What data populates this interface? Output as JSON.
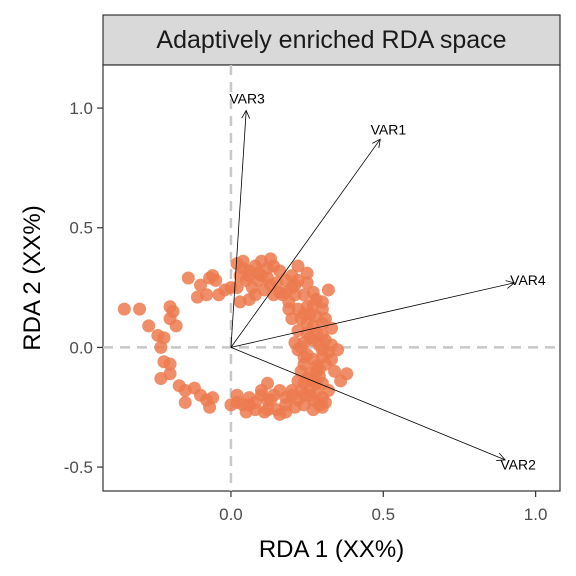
{
  "chart_data": {
    "type": "scatter",
    "title": "Adaptively enriched RDA space",
    "xlabel": "RDA 1 (XX%)",
    "ylabel": "RDA 2 (XX%)",
    "xlim": [
      -0.42,
      1.08
    ],
    "ylim": [
      -0.6,
      1.18
    ],
    "x_ticks": [
      {
        "value": 0.0,
        "label": "0.0"
      },
      {
        "value": 0.5,
        "label": "0.5"
      },
      {
        "value": 1.0,
        "label": "1.0"
      }
    ],
    "y_ticks": [
      {
        "value": -0.5,
        "label": "-0.5"
      },
      {
        "value": 0.0,
        "label": "0.0"
      },
      {
        "value": 0.5,
        "label": "0.5"
      },
      {
        "value": 1.0,
        "label": "1.0"
      }
    ],
    "grid": false,
    "reference_lines": {
      "x": 0,
      "y": 0
    },
    "point_color": "#EC7A4F",
    "vectors": [
      {
        "label": "VAR1",
        "x": 0.49,
        "y": 0.87
      },
      {
        "label": "VAR2",
        "x": 0.9,
        "y": -0.47
      },
      {
        "label": "VAR3",
        "x": 0.05,
        "y": 0.99
      },
      {
        "label": "VAR4",
        "x": 0.93,
        "y": 0.27
      }
    ],
    "points": [
      [
        -0.35,
        0.16
      ],
      [
        -0.3,
        0.16
      ],
      [
        -0.27,
        0.09
      ],
      [
        -0.24,
        0.05
      ],
      [
        -0.23,
        0.0
      ],
      [
        -0.22,
        0.04
      ],
      [
        -0.2,
        0.12
      ],
      [
        -0.2,
        0.17
      ],
      [
        -0.19,
        0.15
      ],
      [
        -0.18,
        0.09
      ],
      [
        -0.22,
        -0.06
      ],
      [
        -0.23,
        -0.13
      ],
      [
        -0.2,
        -0.11
      ],
      [
        -0.17,
        -0.16
      ],
      [
        -0.2,
        -0.07
      ],
      [
        -0.15,
        -0.18
      ],
      [
        -0.12,
        -0.17
      ],
      [
        -0.15,
        -0.23
      ],
      [
        -0.1,
        -0.2
      ],
      [
        -0.07,
        -0.25
      ],
      [
        -0.08,
        -0.22
      ],
      [
        -0.06,
        -0.21
      ],
      [
        -0.14,
        0.29
      ],
      [
        -0.11,
        0.21
      ],
      [
        -0.1,
        0.26
      ],
      [
        -0.08,
        0.22
      ],
      [
        -0.07,
        0.29
      ],
      [
        -0.06,
        0.3
      ],
      [
        -0.05,
        0.28
      ],
      [
        -0.04,
        0.22
      ],
      [
        -0.02,
        0.24
      ],
      [
        0.0,
        0.25
      ],
      [
        0.02,
        0.25
      ],
      [
        0.03,
        0.3
      ],
      [
        0.05,
        0.28
      ],
      [
        0.02,
        0.35
      ],
      [
        0.04,
        0.33
      ],
      [
        0.06,
        0.32
      ],
      [
        0.08,
        0.34
      ],
      [
        0.1,
        0.36
      ],
      [
        0.1,
        0.3
      ],
      [
        0.12,
        0.33
      ],
      [
        0.14,
        0.34
      ],
      [
        0.16,
        0.32
      ],
      [
        0.18,
        0.28
      ],
      [
        0.16,
        0.23
      ],
      [
        0.13,
        0.26
      ],
      [
        0.11,
        0.24
      ],
      [
        0.08,
        0.22
      ],
      [
        0.06,
        0.2
      ],
      [
        0.03,
        0.19
      ],
      [
        0.07,
        0.25
      ],
      [
        0.12,
        0.29
      ],
      [
        0.15,
        0.27
      ],
      [
        0.18,
        0.23
      ],
      [
        0.2,
        0.25
      ],
      [
        0.2,
        0.3
      ],
      [
        0.22,
        0.28
      ],
      [
        0.21,
        0.22
      ],
      [
        0.19,
        0.19
      ],
      [
        0.24,
        0.22
      ],
      [
        0.25,
        0.17
      ],
      [
        0.22,
        0.16
      ],
      [
        0.23,
        0.12
      ],
      [
        0.26,
        0.14
      ],
      [
        0.28,
        0.13
      ],
      [
        0.27,
        0.09
      ],
      [
        0.3,
        0.1
      ],
      [
        0.31,
        0.12
      ],
      [
        0.33,
        0.08
      ],
      [
        0.32,
        0.24
      ],
      [
        0.28,
        0.2
      ],
      [
        0.25,
        0.06
      ],
      [
        0.22,
        0.07
      ],
      [
        0.27,
        0.03
      ],
      [
        0.3,
        0.05
      ],
      [
        0.24,
        0.02
      ],
      [
        0.22,
        -0.01
      ],
      [
        0.25,
        -0.03
      ],
      [
        0.27,
        -0.05
      ],
      [
        0.3,
        -0.04
      ],
      [
        0.28,
        -0.08
      ],
      [
        0.24,
        -0.07
      ],
      [
        0.23,
        -0.1
      ],
      [
        0.26,
        -0.11
      ],
      [
        0.29,
        -0.12
      ],
      [
        0.3,
        -0.15
      ],
      [
        0.27,
        -0.14
      ],
      [
        0.24,
        -0.15
      ],
      [
        0.26,
        -0.17
      ],
      [
        0.28,
        -0.19
      ],
      [
        0.3,
        -0.21
      ],
      [
        0.32,
        -0.18
      ],
      [
        0.29,
        -0.24
      ],
      [
        0.31,
        -0.23
      ],
      [
        0.27,
        -0.22
      ],
      [
        0.24,
        -0.2
      ],
      [
        0.2,
        -0.18
      ],
      [
        0.22,
        -0.22
      ],
      [
        0.18,
        -0.21
      ],
      [
        0.16,
        -0.18
      ],
      [
        0.14,
        -0.2
      ],
      [
        0.12,
        -0.22
      ],
      [
        0.1,
        -0.2
      ],
      [
        0.08,
        -0.23
      ],
      [
        0.06,
        -0.21
      ],
      [
        0.04,
        -0.24
      ],
      [
        0.02,
        -0.23
      ],
      [
        0.0,
        -0.24
      ],
      [
        0.05,
        -0.27
      ],
      [
        0.08,
        -0.26
      ],
      [
        0.12,
        -0.26
      ],
      [
        0.15,
        -0.26
      ],
      [
        0.18,
        -0.27
      ],
      [
        0.21,
        -0.25
      ],
      [
        0.24,
        -0.24
      ],
      [
        0.27,
        -0.26
      ],
      [
        0.3,
        -0.25
      ],
      [
        0.36,
        -0.14
      ],
      [
        0.38,
        -0.11
      ],
      [
        0.34,
        -0.1
      ],
      [
        0.33,
        -0.05
      ],
      [
        0.35,
        -0.01
      ],
      [
        0.32,
        -0.02
      ],
      [
        0.29,
        0.01
      ],
      [
        0.31,
        0.03
      ],
      [
        0.28,
        0.06
      ],
      [
        0.25,
        0.1
      ],
      [
        0.2,
        0.12
      ],
      [
        0.24,
        0.14
      ],
      [
        0.3,
        0.16
      ],
      [
        0.27,
        0.18
      ],
      [
        0.25,
        0.27
      ],
      [
        0.22,
        0.34
      ],
      [
        0.13,
        0.37
      ],
      [
        0.09,
        0.28
      ],
      [
        0.04,
        0.36
      ],
      [
        0.23,
        0.0
      ],
      [
        0.26,
        0.04
      ],
      [
        0.21,
        0.02
      ],
      [
        0.28,
        -0.15
      ],
      [
        0.25,
        -0.13
      ],
      [
        0.23,
        -0.18
      ],
      [
        0.26,
        -0.2
      ],
      [
        0.28,
        -0.1
      ],
      [
        0.24,
        -0.04
      ],
      [
        0.12,
        -0.15
      ],
      [
        0.16,
        -0.28
      ],
      [
        0.2,
        -0.2
      ],
      [
        0.06,
        -0.24
      ],
      [
        0.14,
        0.22
      ],
      [
        0.19,
        0.16
      ],
      [
        0.1,
        -0.18
      ],
      [
        0.22,
        -0.14
      ],
      [
        0.29,
        -0.09
      ],
      [
        0.31,
        -0.07
      ],
      [
        0.33,
        0.01
      ],
      [
        0.21,
        0.26
      ],
      [
        0.17,
        0.22
      ],
      [
        0.09,
        0.31
      ],
      [
        0.02,
        -0.2
      ],
      [
        0.27,
        0.23
      ],
      [
        0.3,
        0.19
      ],
      [
        0.25,
        0.31
      ],
      [
        0.06,
        0.3
      ],
      [
        0.13,
        -0.22
      ],
      [
        0.3,
        -0.01
      ],
      [
        0.18,
        -0.24
      ],
      [
        0.11,
        -0.27
      ]
    ]
  }
}
